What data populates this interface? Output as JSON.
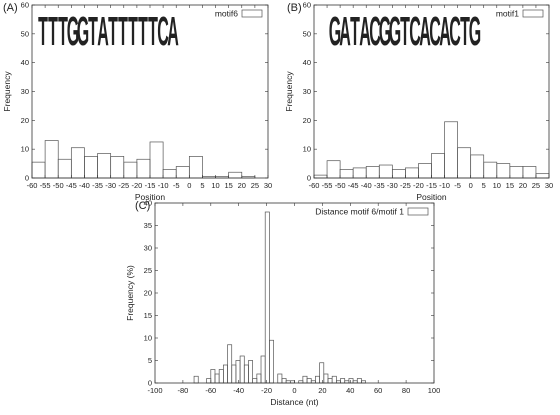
{
  "chart_data": [
    {
      "panel": "(A)",
      "type": "bar",
      "legend": "motif6",
      "legend_position": "top-right",
      "logo_letters": "TTTGGTATTTTTCA",
      "xlabel": "Position",
      "ylabel": "Frequency",
      "xlim": [
        -60,
        30
      ],
      "ylim": [
        0,
        60
      ],
      "xticks": [
        -60,
        -55,
        -50,
        -45,
        -40,
        -35,
        -30,
        -25,
        -20,
        -15,
        -10,
        -5,
        0,
        5,
        10,
        15,
        20,
        25,
        30
      ],
      "yticks": [
        0,
        10,
        20,
        30,
        40,
        50,
        60
      ],
      "bin_width": 5,
      "bin_starts": [
        -60,
        -55,
        -50,
        -45,
        -40,
        -35,
        -30,
        -25,
        -20,
        -15,
        -10,
        -5,
        0,
        5,
        10,
        15,
        20
      ],
      "values": [
        5.5,
        13,
        6.5,
        10.5,
        7.5,
        8.5,
        7.5,
        5.5,
        6.5,
        12.5,
        3,
        4,
        7.5,
        0.5,
        0.5,
        2,
        0.5
      ]
    },
    {
      "panel": "(B)",
      "type": "bar",
      "legend": "motif1",
      "legend_position": "top-right",
      "logo_letters": "GATACGGTCACACTG",
      "xlabel": "Position",
      "ylabel": "Frequency",
      "xlim": [
        -60,
        30
      ],
      "ylim": [
        0,
        60
      ],
      "xticks": [
        -60,
        -55,
        -50,
        -45,
        -40,
        -35,
        -30,
        -25,
        -20,
        -15,
        -10,
        -5,
        0,
        5,
        10,
        15,
        20,
        25,
        30
      ],
      "yticks": [
        0,
        10,
        20,
        30,
        40,
        50,
        60
      ],
      "bin_width": 5,
      "bin_starts": [
        -60,
        -55,
        -50,
        -45,
        -40,
        -35,
        -30,
        -25,
        -20,
        -15,
        -10,
        -5,
        0,
        5,
        10,
        15,
        20,
        25
      ],
      "values": [
        1,
        6,
        3,
        3.5,
        4,
        4.5,
        3,
        3.5,
        5,
        8.5,
        19.5,
        10.5,
        8,
        5.5,
        5,
        4,
        4,
        1.5
      ]
    },
    {
      "panel": "(C)",
      "type": "bar",
      "legend": "Distance motif 6/motif 1",
      "legend_position": "top-right",
      "xlabel": "Distance (nt)",
      "ylabel": "Frequency (%)",
      "xlim": [
        -100,
        100
      ],
      "ylim": [
        0,
        40
      ],
      "xticks": [
        -100,
        -80,
        -60,
        -40,
        -20,
        0,
        20,
        40,
        60,
        80,
        100
      ],
      "yticks": [
        0,
        5,
        10,
        15,
        20,
        25,
        30,
        35,
        40
      ],
      "bin_width": 3,
      "bin_starts": [
        -72,
        -63,
        -60,
        -57,
        -54,
        -51,
        -48,
        -45,
        -42,
        -39,
        -36,
        -33,
        -30,
        -27,
        -24,
        -21,
        -18,
        -12,
        -9,
        -6,
        -3,
        3,
        6,
        9,
        12,
        15,
        18,
        21,
        24,
        27,
        30,
        33,
        36,
        39,
        42,
        45,
        48
      ],
      "values": [
        1.5,
        1,
        3,
        2,
        3,
        4,
        8.5,
        4,
        5,
        6,
        4,
        5,
        1,
        2,
        6,
        38,
        9.5,
        2,
        1,
        0.5,
        0.5,
        0.5,
        1.5,
        1,
        0.5,
        1.5,
        4.5,
        2,
        1,
        1.5,
        0.5,
        1,
        0.5,
        1,
        0.5,
        1,
        0.5
      ]
    }
  ],
  "colors": {
    "logo_T": "#e0a31d",
    "logo_G": "#e8b020",
    "logo_A": "#2e9a3a",
    "logo_C": "#2f3ea8",
    "bar_stroke": "#555555",
    "axis": "#333333"
  }
}
